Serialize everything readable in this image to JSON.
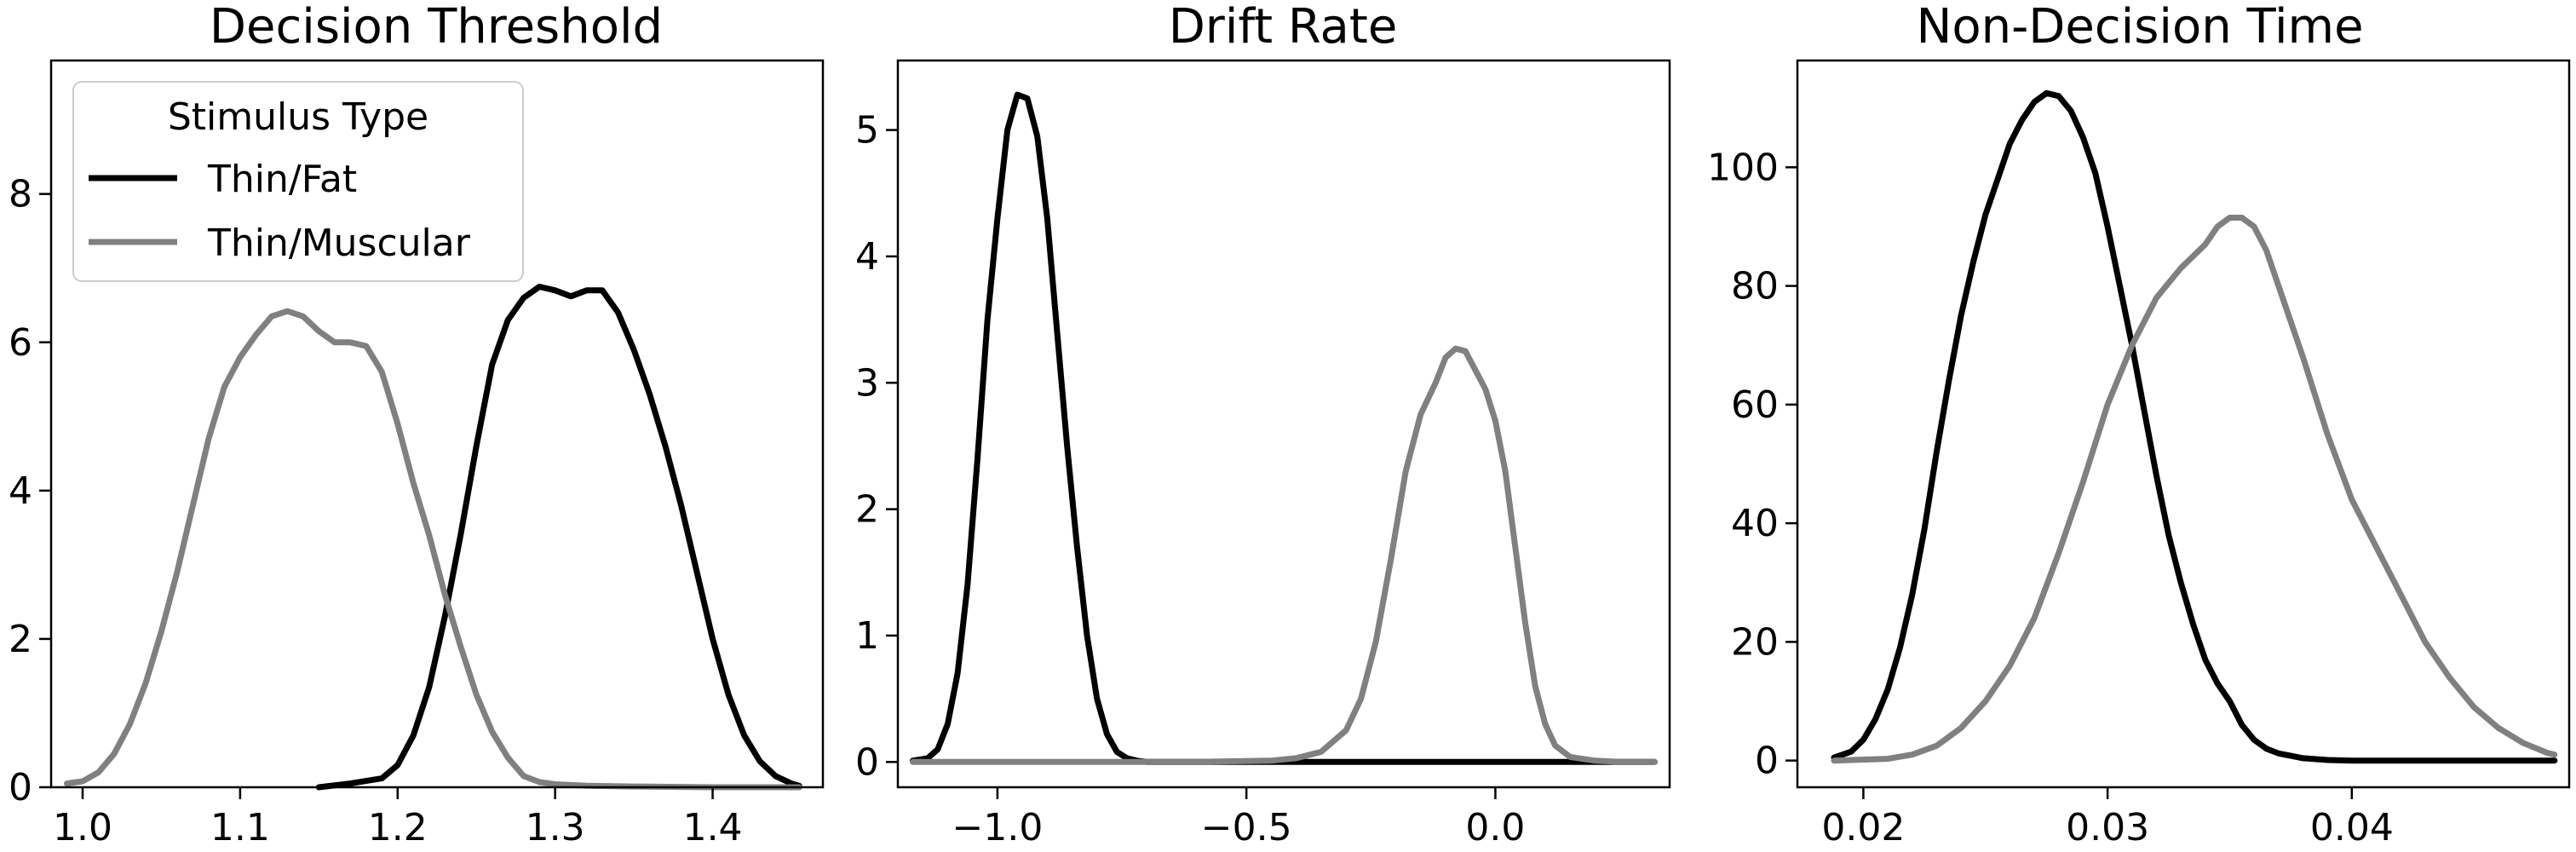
{
  "chart_data": [
    {
      "type": "line",
      "title": "Decision Threshold",
      "xlabel": "",
      "ylabel": "",
      "xlim": [
        0.98,
        1.47
      ],
      "ylim": [
        0,
        9.8
      ],
      "xticks": [
        1.0,
        1.1,
        1.2,
        1.3,
        1.4
      ],
      "xtick_labels": [
        "1.0",
        "1.1",
        "1.2",
        "1.3",
        "1.4"
      ],
      "yticks": [
        0,
        2,
        4,
        6,
        8
      ],
      "ytick_labels": [
        "0",
        "2",
        "4",
        "6",
        "8"
      ],
      "grid": false,
      "legend": {
        "title": "Stimulus Type",
        "placement": "top-left",
        "entries": [
          "Thin/Fat",
          "Thin/Muscular"
        ]
      },
      "series": [
        {
          "name": "Thin/Fat",
          "color": "#000000",
          "x": [
            1.15,
            1.17,
            1.19,
            1.2,
            1.21,
            1.22,
            1.23,
            1.24,
            1.25,
            1.26,
            1.27,
            1.28,
            1.29,
            1.3,
            1.31,
            1.32,
            1.33,
            1.34,
            1.35,
            1.36,
            1.37,
            1.38,
            1.39,
            1.4,
            1.41,
            1.42,
            1.43,
            1.44,
            1.45,
            1.455
          ],
          "y": [
            0.0,
            0.05,
            0.12,
            0.3,
            0.7,
            1.35,
            2.3,
            3.4,
            4.6,
            5.7,
            6.3,
            6.6,
            6.75,
            6.7,
            6.62,
            6.7,
            6.7,
            6.4,
            5.9,
            5.3,
            4.6,
            3.8,
            2.9,
            2.0,
            1.25,
            0.7,
            0.35,
            0.15,
            0.05,
            0.02
          ]
        },
        {
          "name": "Thin/Muscular",
          "color": "#808080",
          "x": [
            0.99,
            1.0,
            1.01,
            1.02,
            1.03,
            1.04,
            1.05,
            1.06,
            1.07,
            1.08,
            1.09,
            1.1,
            1.11,
            1.12,
            1.13,
            1.14,
            1.15,
            1.16,
            1.17,
            1.18,
            1.19,
            1.2,
            1.21,
            1.22,
            1.23,
            1.24,
            1.25,
            1.26,
            1.27,
            1.28,
            1.29,
            1.3,
            1.32,
            1.35,
            1.4,
            1.455
          ],
          "y": [
            0.05,
            0.08,
            0.2,
            0.45,
            0.85,
            1.4,
            2.1,
            2.9,
            3.8,
            4.7,
            5.4,
            5.8,
            6.1,
            6.35,
            6.42,
            6.35,
            6.15,
            6.0,
            6.0,
            5.95,
            5.6,
            4.9,
            4.1,
            3.4,
            2.6,
            1.9,
            1.25,
            0.75,
            0.4,
            0.15,
            0.07,
            0.04,
            0.02,
            0.01,
            0.0,
            0.0
          ]
        }
      ]
    },
    {
      "type": "line",
      "title": "Drift Rate",
      "xlabel": "",
      "ylabel": "",
      "xlim": [
        -1.2,
        0.35
      ],
      "ylim": [
        -0.2,
        5.55
      ],
      "xticks": [
        -1.0,
        -0.5,
        0.0
      ],
      "xtick_labels": [
        "−1.0",
        "−0.5",
        "0.0"
      ],
      "yticks": [
        0,
        1,
        2,
        3,
        4,
        5
      ],
      "ytick_labels": [
        "0",
        "1",
        "2",
        "3",
        "4",
        "5"
      ],
      "grid": false,
      "series": [
        {
          "name": "Thin/Fat",
          "color": "#000000",
          "x": [
            -1.17,
            -1.14,
            -1.12,
            -1.1,
            -1.08,
            -1.06,
            -1.04,
            -1.02,
            -1.0,
            -0.98,
            -0.96,
            -0.94,
            -0.92,
            -0.9,
            -0.88,
            -0.86,
            -0.84,
            -0.82,
            -0.8,
            -0.78,
            -0.76,
            -0.74,
            -0.72,
            -0.7,
            -0.66,
            -0.6,
            -0.4,
            0.0,
            0.32
          ],
          "y": [
            0.01,
            0.03,
            0.1,
            0.3,
            0.7,
            1.4,
            2.4,
            3.5,
            4.3,
            5.0,
            5.28,
            5.25,
            4.95,
            4.3,
            3.4,
            2.5,
            1.7,
            1.0,
            0.5,
            0.22,
            0.08,
            0.03,
            0.01,
            0.0,
            0.0,
            0.0,
            0.0,
            0.0,
            0.0
          ]
        },
        {
          "name": "Thin/Muscular",
          "color": "#808080",
          "x": [
            -1.17,
            -0.6,
            -0.45,
            -0.4,
            -0.35,
            -0.3,
            -0.27,
            -0.24,
            -0.21,
            -0.18,
            -0.15,
            -0.12,
            -0.1,
            -0.08,
            -0.06,
            -0.04,
            -0.02,
            0.0,
            0.02,
            0.04,
            0.06,
            0.08,
            0.1,
            0.12,
            0.15,
            0.2,
            0.25,
            0.32
          ],
          "y": [
            0.0,
            0.0,
            0.01,
            0.03,
            0.08,
            0.25,
            0.5,
            0.95,
            1.6,
            2.3,
            2.75,
            3.0,
            3.2,
            3.27,
            3.25,
            3.1,
            2.95,
            2.7,
            2.3,
            1.7,
            1.1,
            0.6,
            0.3,
            0.13,
            0.04,
            0.01,
            0.0,
            0.0
          ]
        }
      ]
    },
    {
      "type": "line",
      "title": "Non-Decision Time",
      "xlabel": "",
      "ylabel": "",
      "xlim": [
        0.0173,
        0.0489
      ],
      "ylim": [
        -4.5,
        118
      ],
      "xticks": [
        0.02,
        0.03,
        0.04
      ],
      "xtick_labels": [
        "0.02",
        "0.03",
        "0.04"
      ],
      "yticks": [
        0,
        20,
        40,
        60,
        80,
        100
      ],
      "ytick_labels": [
        "0",
        "20",
        "40",
        "60",
        "80",
        "100"
      ],
      "grid": false,
      "series": [
        {
          "name": "Thin/Fat",
          "color": "#000000",
          "x": [
            0.0188,
            0.0195,
            0.02,
            0.0205,
            0.021,
            0.0215,
            0.022,
            0.0225,
            0.023,
            0.0235,
            0.024,
            0.0245,
            0.025,
            0.0255,
            0.026,
            0.0265,
            0.027,
            0.0275,
            0.028,
            0.0285,
            0.029,
            0.0295,
            0.03,
            0.0305,
            0.031,
            0.0315,
            0.032,
            0.0325,
            0.033,
            0.0335,
            0.034,
            0.0345,
            0.035,
            0.0355,
            0.036,
            0.0365,
            0.037,
            0.0375,
            0.038,
            0.039,
            0.04,
            0.042,
            0.045,
            0.0483
          ],
          "y": [
            0.5,
            1.5,
            3.5,
            7,
            12,
            19,
            28,
            39,
            52,
            64,
            75,
            84,
            92,
            98,
            104,
            108,
            111,
            112.5,
            112,
            109.5,
            105,
            99,
            90,
            80,
            70,
            59,
            48,
            38,
            30,
            23,
            17,
            13,
            10,
            6,
            3.5,
            2,
            1.2,
            0.8,
            0.4,
            0.1,
            0.0,
            0.0,
            0.0,
            0.0
          ]
        },
        {
          "name": "Thin/Muscular",
          "color": "#808080",
          "x": [
            0.0188,
            0.021,
            0.022,
            0.023,
            0.024,
            0.025,
            0.026,
            0.027,
            0.028,
            0.029,
            0.03,
            0.031,
            0.032,
            0.033,
            0.034,
            0.0345,
            0.035,
            0.0355,
            0.036,
            0.0365,
            0.037,
            0.038,
            0.039,
            0.04,
            0.041,
            0.042,
            0.043,
            0.044,
            0.045,
            0.046,
            0.047,
            0.048,
            0.0483
          ],
          "y": [
            0.0,
            0.3,
            1.0,
            2.5,
            5.5,
            10,
            16,
            24,
            35,
            47,
            60,
            70,
            78,
            83,
            87,
            90,
            91.5,
            91.5,
            90,
            86,
            80,
            68,
            55,
            44,
            36,
            28,
            20,
            14,
            9,
            5.5,
            3,
            1.3,
            1.0
          ]
        }
      ]
    }
  ]
}
